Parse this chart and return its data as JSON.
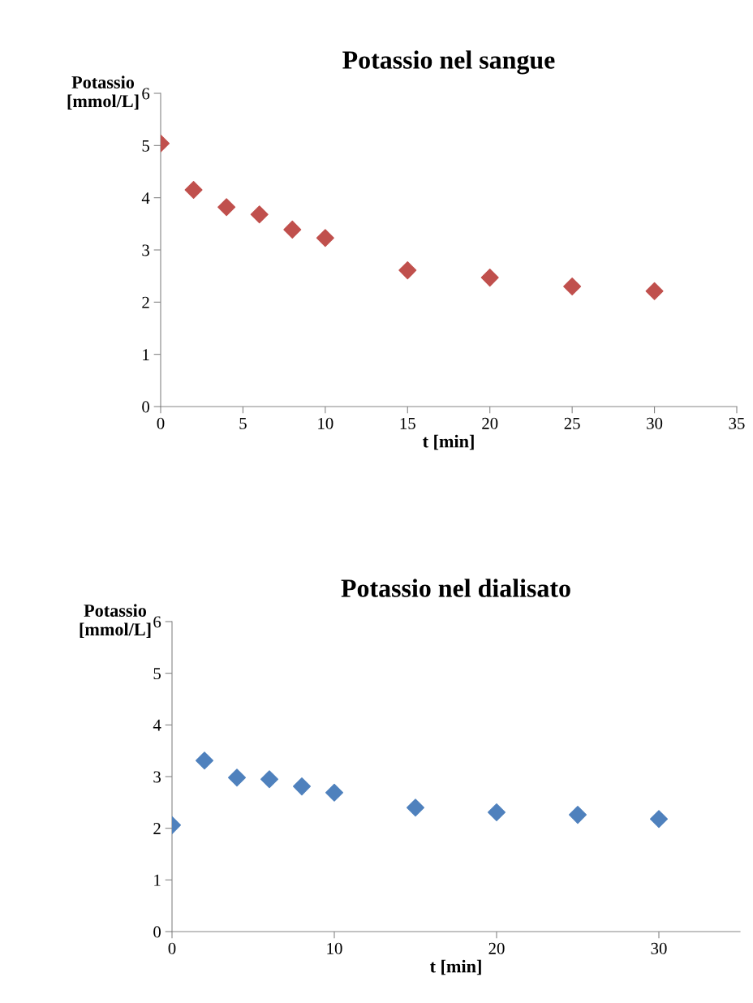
{
  "chart_data": [
    {
      "type": "scatter",
      "title": "Potassio nel sangue",
      "xlabel": "t [min]",
      "ylabel": "Potassio\n[mmol/L]",
      "x": [
        0,
        2,
        4,
        6,
        8,
        10,
        15,
        20,
        25,
        30
      ],
      "series": [
        {
          "color": "#c0504d",
          "values": [
            5.04,
            4.15,
            3.82,
            3.68,
            3.39,
            3.23,
            2.61,
            2.47,
            2.3,
            2.21
          ]
        }
      ],
      "xlim": [
        0,
        35
      ],
      "xticks": [
        0,
        5,
        10,
        15,
        20,
        25,
        30,
        35
      ],
      "ylim": [
        0,
        6
      ],
      "yticks": [
        0,
        1,
        2,
        3,
        4,
        5,
        6
      ],
      "marker": "diamond",
      "grid": false,
      "legend": false
    },
    {
      "type": "scatter",
      "title": "Potassio nel dialisato",
      "xlabel": "t [min]",
      "ylabel": "Potassio\n[mmol/L]",
      "x": [
        0,
        2,
        4,
        6,
        8,
        10,
        15,
        20,
        25,
        30
      ],
      "series": [
        {
          "color": "#4f81bd",
          "values": [
            2.06,
            3.31,
            2.98,
            2.95,
            2.81,
            2.69,
            2.4,
            2.31,
            2.26,
            2.18
          ]
        }
      ],
      "xlim": [
        0,
        35
      ],
      "xticks": [
        0,
        10,
        20,
        30
      ],
      "ylim": [
        0,
        6
      ],
      "yticks": [
        0,
        1,
        2,
        3,
        4,
        5,
        6
      ],
      "marker": "diamond",
      "grid": false,
      "legend": false
    }
  ]
}
